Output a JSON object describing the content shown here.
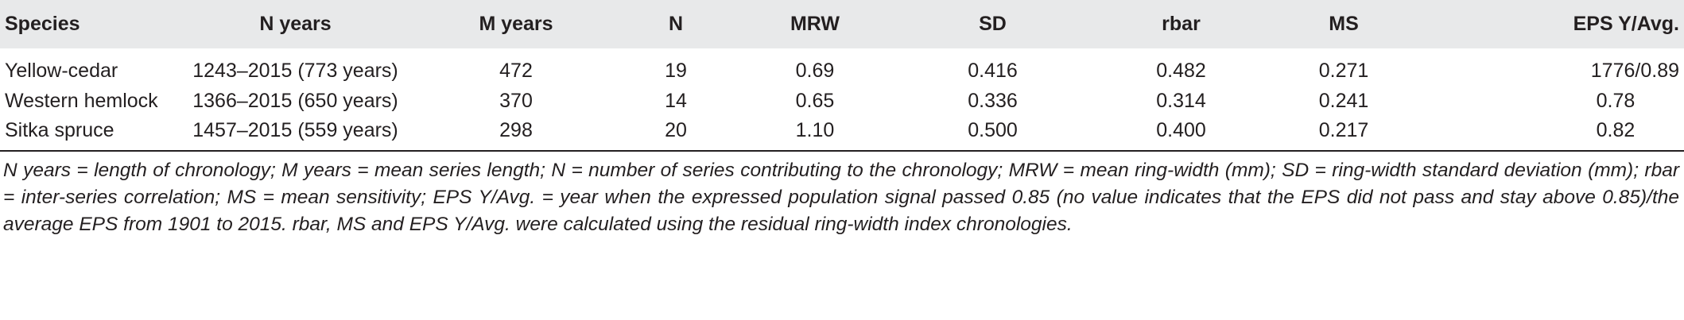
{
  "table": {
    "headers": [
      "Species",
      "N years",
      "M years",
      "N",
      "MRW",
      "SD",
      "rbar",
      "MS",
      "EPS Y/Avg."
    ],
    "rows": [
      [
        "Yellow-cedar",
        "1243–2015 (773 years)",
        "472",
        "19",
        "0.69",
        "0.416",
        "0.482",
        "0.271",
        "1776/0.89"
      ],
      [
        "Western hemlock",
        "1366–2015 (650 years)",
        "370",
        "14",
        "0.65",
        "0.336",
        "0.314",
        "0.241",
        "0.78"
      ],
      [
        "Sitka spruce",
        "1457–2015 (559 years)",
        "298",
        "20",
        "1.10",
        "0.500",
        "0.400",
        "0.217",
        "0.82"
      ]
    ]
  },
  "footnote": "N years = length of chronology; M years = mean series length; N = number of series contributing to the chronology; MRW = mean ring-width (mm); SD = ring-width standard deviation (mm); rbar = inter-series correlation; MS = mean sensitivity; EPS Y/Avg. = year when the expressed population signal passed 0.85 (no value indicates that the EPS did not pass and stay above 0.85)/the average EPS from 1901 to 2015. rbar, MS and EPS Y/Avg. were calculated using the residual ring-width index chronologies.",
  "colors": {
    "header_background": "#e8e9ea",
    "text": "#231f20",
    "rule": "#231f20"
  }
}
